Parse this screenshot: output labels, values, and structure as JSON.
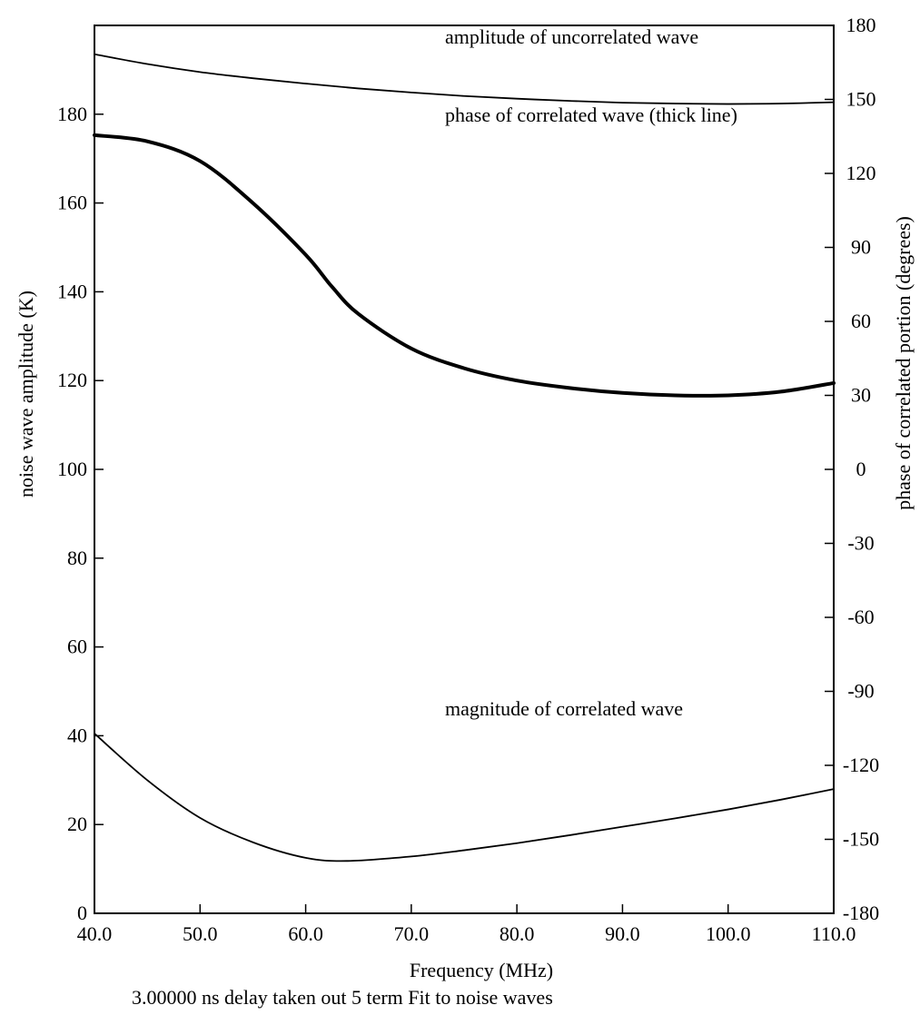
{
  "chart_data": {
    "type": "line",
    "caption": "3.00000 ns delay taken out 5 term Fit to noise waves",
    "xlabel": "Frequency (MHz)",
    "ylabel_left": "noise wave amplitude (K)",
    "ylabel_right": "phase of correlated portion (degrees)",
    "xlim": [
      40,
      110
    ],
    "ylim_left": [
      0,
      200
    ],
    "ylim_right": [
      -180,
      180
    ],
    "x_ticks": [
      "40.0",
      "50.0",
      "60.0",
      "70.0",
      "80.0",
      "90.0",
      "100.0",
      "110.0"
    ],
    "y_left_ticks": [
      "0",
      "20",
      "40",
      "60",
      "80",
      "100",
      "120",
      "140",
      "160",
      "180"
    ],
    "y_right_ticks": [
      "-180",
      "-150",
      "-120",
      "-90",
      "-60",
      "-30",
      "0",
      "30",
      "60",
      "90",
      "120",
      "150",
      "180"
    ],
    "grid": false,
    "annotations": [
      {
        "text": "amplitude of uncorrelated wave",
        "x": 40,
        "y": 105,
        "axis": "left"
      },
      {
        "text": "phase of correlated wave (thick line)",
        "x": 40,
        "y": 180,
        "axis": "left"
      },
      {
        "text": "magnitude of correlated wave",
        "x": 40,
        "y": 43,
        "axis": "left"
      }
    ],
    "series": [
      {
        "axis": "left",
        "width": "thin",
        "x": [
          40,
          45,
          50,
          55,
          60,
          65,
          70,
          75,
          80,
          85,
          90,
          95,
          100,
          105,
          110
        ],
        "y": [
          193.5,
          191.3,
          189.5,
          188.1,
          186.9,
          185.8,
          184.9,
          184.1,
          183.5,
          183.0,
          182.6,
          182.4,
          182.3,
          182.4,
          182.7
        ]
      },
      {
        "axis": "right",
        "width": "thick",
        "x": [
          40,
          45,
          50,
          55,
          60,
          62.5,
          65,
          70,
          75,
          80,
          85,
          90,
          95,
          100,
          105,
          110
        ],
        "y": [
          135.5,
          133,
          125,
          108,
          87,
          74,
          63,
          49,
          41,
          36,
          33,
          31,
          30,
          30,
          31.5,
          35
        ]
      },
      {
        "axis": "left",
        "width": "thin",
        "x": [
          40,
          45,
          50,
          55,
          60,
          64,
          70,
          75,
          80,
          85,
          90,
          95,
          100,
          105,
          110
        ],
        "y": [
          40.5,
          30,
          21.5,
          16,
          12.5,
          11.8,
          12.8,
          14.2,
          15.8,
          17.6,
          19.5,
          21.4,
          23.4,
          25.6,
          28
        ]
      }
    ]
  }
}
